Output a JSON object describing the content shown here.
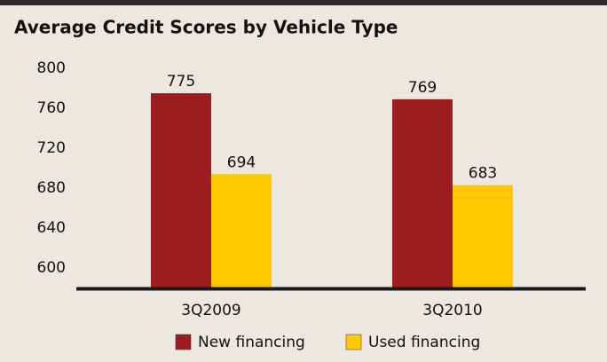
{
  "chart_data": {
    "type": "bar",
    "title": "Average Credit Scores by Vehicle Type",
    "categories": [
      "3Q2009",
      "3Q2010"
    ],
    "series": [
      {
        "name": "New financing",
        "color": "#9c1c1f",
        "values": [
          775,
          769
        ]
      },
      {
        "name": "Used financing",
        "color": "#ffc800",
        "values": [
          694,
          683
        ]
      }
    ],
    "ylim": [
      580,
      800
    ],
    "yticks": [
      600,
      640,
      680,
      720,
      760,
      800
    ],
    "grid": false
  }
}
